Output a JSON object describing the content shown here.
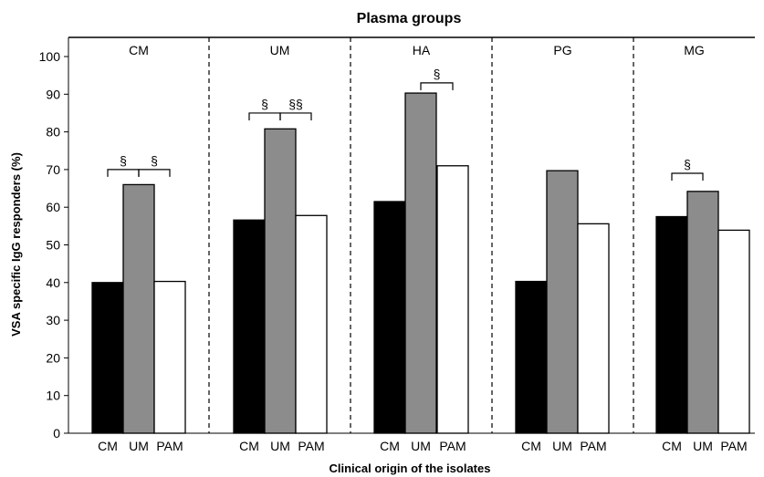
{
  "chart_data": {
    "type": "bar",
    "title": "Plasma groups",
    "xlabel": "Clinical origin of the isolates",
    "ylabel": "VSA specific IgG responders (%)",
    "ylim": [
      0,
      100
    ],
    "yticks": [
      0,
      10,
      20,
      30,
      40,
      50,
      60,
      70,
      80,
      90,
      100
    ],
    "grid": false,
    "categories": [
      "CM",
      "UM",
      "PAM"
    ],
    "colors": {
      "CM": "#000000",
      "UM": "#8c8c8c",
      "PAM": "#ffffff"
    },
    "panels": [
      {
        "group": "CM",
        "values": [
          40,
          66,
          40.3
        ],
        "significance": [
          {
            "from": "CM",
            "to": "UM",
            "label": "§",
            "y": 70
          },
          {
            "from": "UM",
            "to": "PAM",
            "label": "§",
            "y": 70
          }
        ]
      },
      {
        "group": "UM",
        "values": [
          56.6,
          80.8,
          57.8
        ],
        "significance": [
          {
            "from": "CM",
            "to": "UM",
            "label": "§",
            "y": 85
          },
          {
            "from": "UM",
            "to": "PAM",
            "label": "§§",
            "y": 85
          }
        ]
      },
      {
        "group": "HA",
        "values": [
          61.5,
          90.3,
          71
        ],
        "significance": [
          {
            "from": "UM",
            "to": "PAM",
            "label": "§",
            "y": 93
          }
        ]
      },
      {
        "group": "PG",
        "values": [
          40.3,
          69.7,
          55.6
        ],
        "significance": []
      },
      {
        "group": "MG",
        "values": [
          57.5,
          64.2,
          53.9
        ],
        "significance": [
          {
            "from": "CM",
            "to": "UM",
            "label": "§",
            "y": 69
          }
        ]
      }
    ]
  }
}
